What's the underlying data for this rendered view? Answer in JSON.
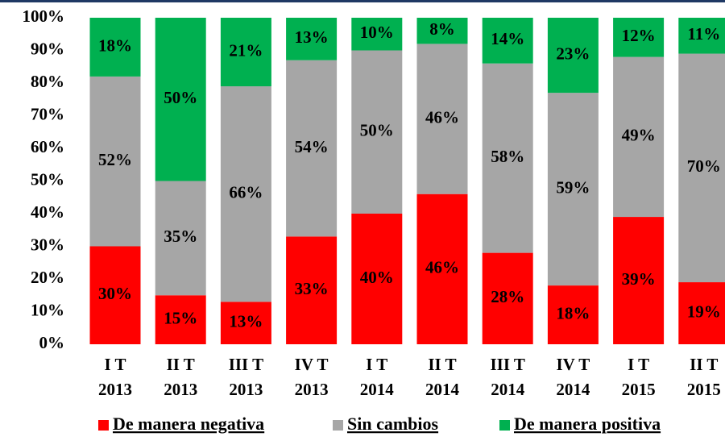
{
  "chart_data": {
    "type": "stacked_bar",
    "categories": [
      [
        "I T",
        "2013"
      ],
      [
        "II T",
        "2013"
      ],
      [
        "III T",
        "2013"
      ],
      [
        "IV T",
        "2013"
      ],
      [
        "I T",
        "2014"
      ],
      [
        "II T",
        "2014"
      ],
      [
        "III T",
        "2014"
      ],
      [
        "IV T",
        "2014"
      ],
      [
        "I T",
        "2015"
      ],
      [
        "II T",
        "2015"
      ]
    ],
    "series": [
      {
        "name": "De manera negativa",
        "color": "#ff0000",
        "values": [
          30,
          15,
          13,
          33,
          40,
          46,
          28,
          18,
          39,
          19
        ],
        "value_labels": [
          "30%",
          "15%",
          "13%",
          "33%",
          "40%",
          "46%",
          "28%",
          "18%",
          "39%",
          "19%"
        ]
      },
      {
        "name": "Sin cambios",
        "color": "#a6a6a6",
        "values": [
          52,
          35,
          66,
          54,
          50,
          46,
          58,
          59,
          49,
          70
        ],
        "value_labels": [
          "52%",
          "35%",
          "66%",
          "54%",
          "50%",
          "46%",
          "58%",
          "59%",
          "49%",
          "70%"
        ]
      },
      {
        "name": "De manera positiva",
        "color": "#00b050",
        "values": [
          18,
          50,
          21,
          13,
          10,
          8,
          14,
          23,
          12,
          11
        ],
        "value_labels": [
          "18%",
          "50%",
          "21%",
          "13%",
          "10%",
          "8%",
          "14%",
          "23%",
          "12%",
          "11%"
        ]
      }
    ],
    "ylim": [
      0,
      100
    ],
    "yticks": [
      {
        "value": 0,
        "label": "0%"
      },
      {
        "value": 10,
        "label": "10%"
      },
      {
        "value": 20,
        "label": "20%"
      },
      {
        "value": 30,
        "label": "30%"
      },
      {
        "value": 40,
        "label": "40%"
      },
      {
        "value": 50,
        "label": "50%"
      },
      {
        "value": 60,
        "label": "60%"
      },
      {
        "value": 70,
        "label": "70%"
      },
      {
        "value": 80,
        "label": "80%"
      },
      {
        "value": 90,
        "label": "90%"
      },
      {
        "value": 100,
        "label": "100%"
      }
    ],
    "legend": "bottom",
    "grid": false
  }
}
